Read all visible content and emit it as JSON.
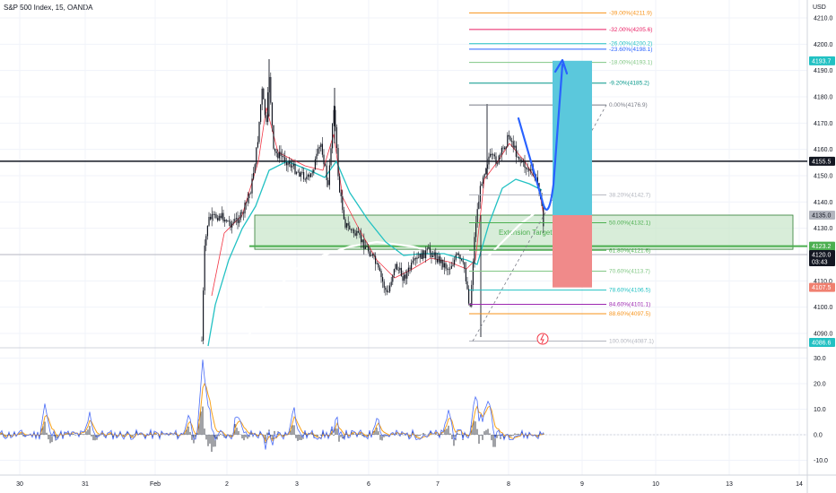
{
  "header": {
    "symbol": "S&P 500 Index, 15, OANDA",
    "currency": "USD"
  },
  "colors": {
    "candle": "#131722",
    "ma_red": "#f23645",
    "ma_teal": "#22c1c3",
    "ma_white": "#ffffff",
    "zone_fill": "#c8e6c9",
    "zone_line": "#4caf50",
    "long_target": "#5bc8dc",
    "long_stop": "#f08a8a",
    "blue_arrow": "#2962ff",
    "osc_blue": "#4a6cf7",
    "osc_orange": "#f7a21b",
    "badge_teal": "#22c1c3",
    "badge_red": "#f08070"
  },
  "chart_data": [
    {
      "type": "candlestick",
      "title": "S&P 500 Index, 15, OANDA",
      "ylabel": "USD",
      "ylim": [
        4083,
        4213
      ],
      "y_ticks": [
        4090.0,
        4100.0,
        4110.0,
        4120.0,
        4130.0,
        4140.0,
        4150.0,
        4160.0,
        4170.0,
        4180.0,
        4190.0,
        4200.0,
        4210.0
      ],
      "x_ticks": [
        "30",
        "31",
        "Feb",
        "2",
        "3",
        "6",
        "7",
        "8",
        "9",
        "10",
        "13",
        "14"
      ],
      "x": [
        "Feb 1",
        "Feb 2",
        "Feb 3",
        "Feb 6",
        "Feb 7",
        "Feb 8"
      ],
      "approx_close": [
        4118,
        4183,
        4136,
        4112,
        4158,
        4120
      ],
      "horizontal_lines": [
        4155.5,
        4123.2,
        4120.0
      ],
      "zone": {
        "label": "Extension Target",
        "range": [
          4122,
          4135
        ]
      },
      "fib_levels": [
        {
          "label": "-39.00%(4211.9)",
          "value": 4211.9,
          "color": "#f7931a"
        },
        {
          "label": "-32.00%(4205.6)",
          "value": 4205.6,
          "color": "#e91e63"
        },
        {
          "label": "-26.00%(4200.2)",
          "value": 4200.2,
          "color": "#22c1c3"
        },
        {
          "label": "-23.60%(4198.1)",
          "value": 4198.1,
          "color": "#2962ff"
        },
        {
          "label": "-18.00%(4193.1)",
          "value": 4193.1,
          "color": "#81c784"
        },
        {
          "label": "-9.20%(4185.2)",
          "value": 4185.2,
          "color": "#009688"
        },
        {
          "label": "0.00%(4176.9)",
          "value": 4176.9,
          "color": "#787b86"
        },
        {
          "label": "38.20%(4142.7)",
          "value": 4142.7,
          "color": "#b2b5be"
        },
        {
          "label": "50.00%(4132.1)",
          "value": 4132.1,
          "color": "#4caf50"
        },
        {
          "label": "61.80%(4121.6)",
          "value": 4121.6,
          "color": "#4caf50"
        },
        {
          "label": "70.60%(4113.7)",
          "value": 4113.7,
          "color": "#81c784"
        },
        {
          "label": "78.60%(4106.5)",
          "value": 4106.5,
          "color": "#22c1c3"
        },
        {
          "label": "84.60%(4101.1)",
          "value": 4101.1,
          "color": "#9c27b0"
        },
        {
          "label": "88.60%(4097.5)",
          "value": 4097.5,
          "color": "#f7931a"
        },
        {
          "label": "100.00%(4087.1)",
          "value": 4087.1,
          "color": "#b2b5be"
        }
      ],
      "position": {
        "type": "long",
        "target": 4193.7,
        "entry": 4135.0,
        "stop": 4107.5
      },
      "price_labels": [
        {
          "text": "4193.7",
          "value": 4193.7,
          "bg": "#22c1c3",
          "fg": "#ffffff"
        },
        {
          "text": "4155.5",
          "value": 4155.5,
          "bg": "#131722",
          "fg": "#ffffff"
        },
        {
          "text": "4135.0",
          "value": 4135.0,
          "bg": "#b2b5be",
          "fg": "#131722"
        },
        {
          "text": "4123.2",
          "value": 4123.2,
          "bg": "#4caf50",
          "fg": "#ffffff"
        },
        {
          "text": "4120.0",
          "sub": "03:43",
          "value": 4120.0,
          "bg": "#131722",
          "fg": "#ffffff"
        },
        {
          "text": "4107.5",
          "value": 4107.5,
          "bg": "#f08070",
          "fg": "#ffffff"
        },
        {
          "text": "4086.6",
          "value": 4086.6,
          "bg": "#22c1c3",
          "fg": "#ffffff"
        }
      ]
    },
    {
      "type": "line",
      "title": "",
      "ylim": [
        -12,
        34
      ],
      "y_ticks": [
        -10.0,
        0.0,
        10.0,
        20.0,
        30.0
      ],
      "series": []
    }
  ]
}
